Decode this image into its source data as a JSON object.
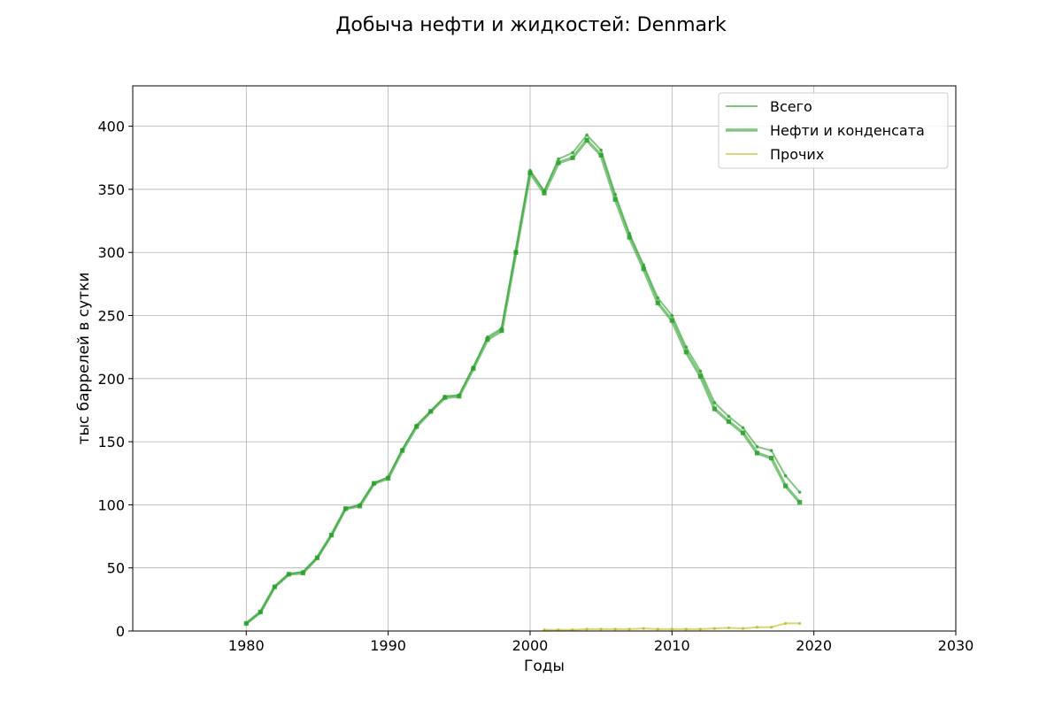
{
  "chart_data": {
    "type": "line",
    "title": "Добыча нефти и жидкостей: Denmark",
    "xlabel": "Годы",
    "ylabel": "тыс баррелей в сутки",
    "xlim": [
      1972,
      2030
    ],
    "ylim": [
      0,
      432
    ],
    "x_ticks": [
      1980,
      1990,
      2000,
      2010,
      2020,
      2030
    ],
    "y_ticks": [
      0,
      50,
      100,
      150,
      200,
      250,
      300,
      350,
      400
    ],
    "grid": true,
    "legend_position": "top-right",
    "series": [
      {
        "name": "Всего",
        "color": "#2ca02c",
        "x": [
          1980,
          1981,
          1982,
          1983,
          1984,
          1985,
          1986,
          1987,
          1988,
          1989,
          1990,
          1991,
          1992,
          1993,
          1994,
          1995,
          1996,
          1997,
          1998,
          1999,
          2000,
          2001,
          2002,
          2003,
          2004,
          2005,
          2006,
          2007,
          2008,
          2009,
          2010,
          2011,
          2012,
          2013,
          2014,
          2015,
          2016,
          2017,
          2018,
          2019
        ],
        "values": [
          6,
          15,
          35,
          45,
          47,
          58,
          76,
          97,
          100,
          117,
          122,
          144,
          163,
          174,
          186,
          187,
          209,
          233,
          240,
          301,
          365,
          349,
          374,
          379,
          393,
          381,
          346,
          315,
          290,
          264,
          250,
          225,
          206,
          181,
          170,
          161,
          146,
          143,
          123,
          110
        ]
      },
      {
        "name": "Нефти и конденсата",
        "color": "#2ca02c",
        "x": [
          1980,
          1981,
          1982,
          1983,
          1984,
          1985,
          1986,
          1987,
          1988,
          1989,
          1990,
          1991,
          1992,
          1993,
          1994,
          1995,
          1996,
          1997,
          1998,
          1999,
          2000,
          2001,
          2002,
          2003,
          2004,
          2005,
          2006,
          2007,
          2008,
          2009,
          2010,
          2011,
          2012,
          2013,
          2014,
          2015,
          2016,
          2017,
          2018,
          2019
        ],
        "values": [
          6,
          15,
          35,
          45,
          46,
          58,
          76,
          97,
          99,
          117,
          121,
          143,
          162,
          174,
          185,
          186,
          208,
          231,
          238,
          300,
          363,
          347,
          371,
          375,
          389,
          377,
          342,
          312,
          287,
          260,
          246,
          221,
          202,
          176,
          166,
          157,
          141,
          137,
          115,
          102
        ]
      },
      {
        "name": "Прочих",
        "color": "#bcbd22",
        "x": [
          2001,
          2002,
          2003,
          2004,
          2005,
          2006,
          2007,
          2008,
          2009,
          2010,
          2011,
          2012,
          2013,
          2014,
          2015,
          2016,
          2017,
          2018,
          2019
        ],
        "values": [
          1,
          1,
          1,
          1.5,
          1.5,
          1.5,
          1.5,
          2,
          1.5,
          1.5,
          1.5,
          1.5,
          2,
          2.5,
          2,
          3,
          3,
          6,
          6
        ]
      }
    ]
  }
}
